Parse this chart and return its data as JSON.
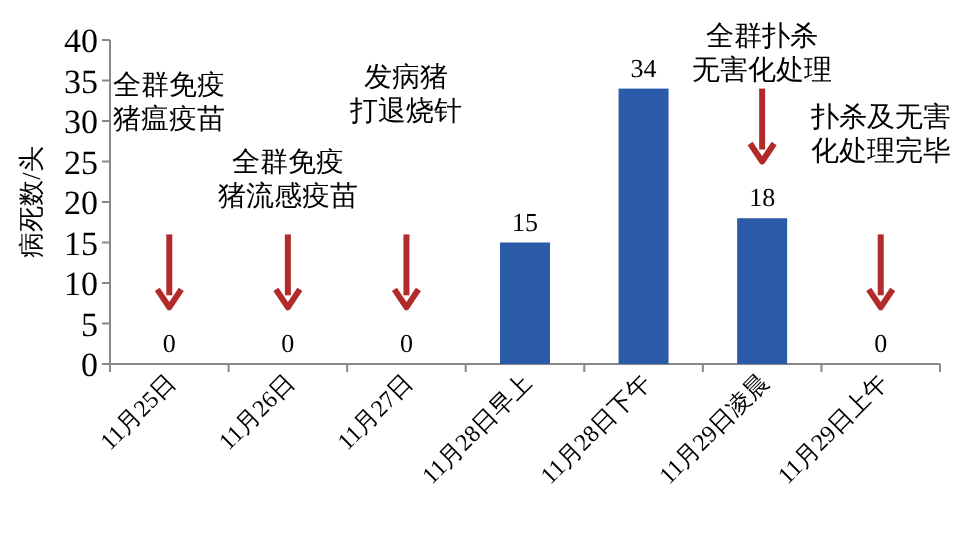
{
  "chart_data": {
    "type": "bar",
    "ylabel": "病死数/头",
    "categories": [
      "11月25日",
      "11月26日",
      "11月27日",
      "11月28日早上",
      "11月28日下午",
      "11月29日凌晨",
      "11月29日上午"
    ],
    "values": [
      0,
      0,
      0,
      15,
      34,
      18,
      0
    ],
    "color": "#2b5aa8",
    "data_labels": true,
    "ylim": [
      0,
      40
    ],
    "yticks": [
      0,
      5,
      10,
      15,
      20,
      25,
      30,
      35,
      40
    ],
    "grid": false,
    "annotations": [
      "全群免疫猪瘟疫苗",
      "全群免疫猪流感疫苗",
      "发病猪打退烧针",
      "全群扑杀无害化处理",
      "扑杀及无害化处理完毕"
    ]
  }
}
